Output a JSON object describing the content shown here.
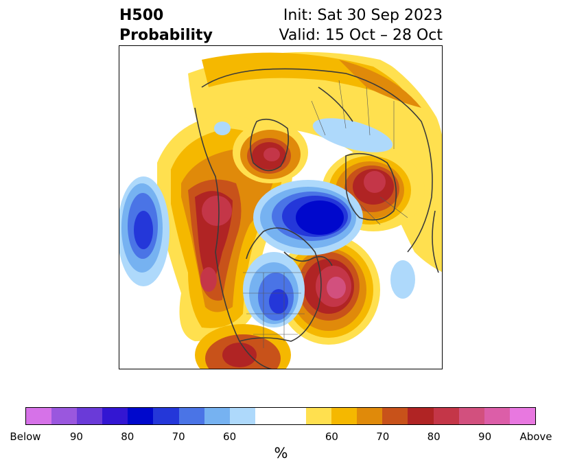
{
  "title": {
    "left_line1": "H500",
    "left_line2": "Probability",
    "right_line1": "Init: Sat 30 Sep 2023",
    "right_line2": "Valid: 15 Oct – 28 Oct"
  },
  "colorbar": {
    "colors": [
      "#d672e8",
      "#9a57de",
      "#6a3ad8",
      "#3316d2",
      "#0008cc",
      "#2437d9",
      "#4a74e6",
      "#76b2f1",
      "#aed9fb",
      "#ffffff",
      "#ffffff",
      "#ffe04f",
      "#f5b800",
      "#e08a0a",
      "#c8521a",
      "#b02424",
      "#c43648",
      "#d2507e",
      "#dc5ea8",
      "#e878e0"
    ],
    "tick_labels": [
      "Below",
      "90",
      "80",
      "70",
      "60",
      "60",
      "70",
      "80",
      "90",
      "Above"
    ],
    "unit_label": "%"
  },
  "map": {
    "projection": "polar-stereographic",
    "above_color": "#b02424",
    "below_color": "#0008cc"
  }
}
